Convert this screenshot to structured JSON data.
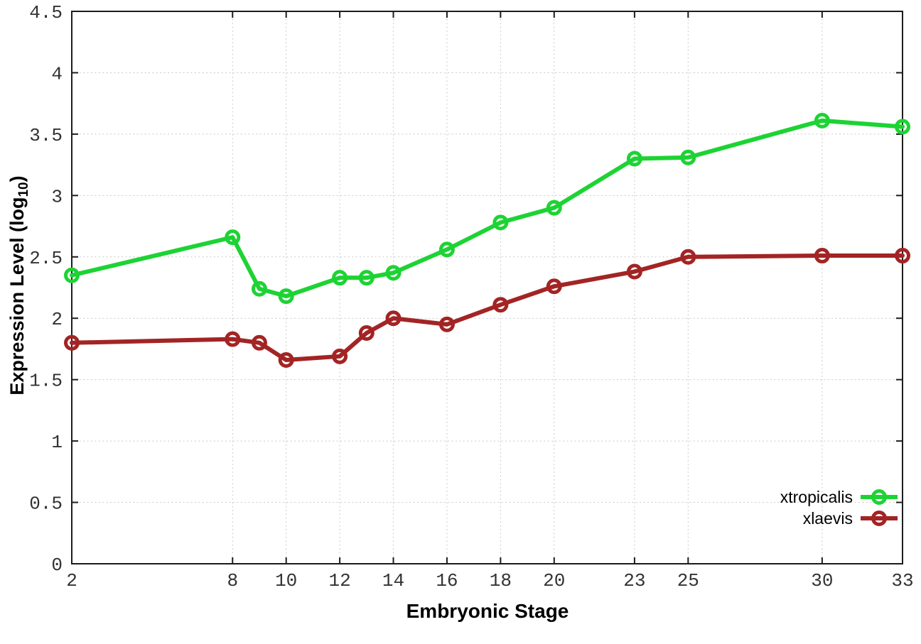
{
  "chart_data": {
    "type": "line",
    "x": [
      2,
      8,
      9,
      10,
      12,
      13,
      14,
      16,
      18,
      20,
      23,
      25,
      30,
      33
    ],
    "series": [
      {
        "name": "xtropicalis",
        "color": "#1dd334",
        "values": [
          2.35,
          2.66,
          2.24,
          2.18,
          2.33,
          2.33,
          2.37,
          2.56,
          2.78,
          2.9,
          3.3,
          3.31,
          3.61,
          3.56
        ]
      },
      {
        "name": "xlaevis",
        "color": "#a32424",
        "values": [
          1.8,
          1.83,
          1.8,
          1.66,
          1.69,
          1.88,
          2.0,
          1.95,
          2.11,
          2.26,
          2.38,
          2.5,
          2.51,
          2.51
        ]
      }
    ],
    "xlabel": "Embryonic Stage",
    "ylabel": "Expression Level (log10)",
    "ylabel_base": "Expression Level (log",
    "ylabel_sub": "10",
    "ylabel_close": ")",
    "xlim": [
      2,
      33
    ],
    "ylim": [
      0,
      4.5
    ],
    "x_ticks": [
      2,
      8,
      10,
      12,
      14,
      16,
      18,
      20,
      23,
      25,
      30,
      33
    ],
    "x_tick_labels": [
      "2",
      "8",
      "10",
      "12",
      "14",
      "16",
      "18",
      "20",
      "23",
      "25",
      "30",
      "33"
    ],
    "y_ticks": [
      0,
      0.5,
      1,
      1.5,
      2,
      2.5,
      3,
      3.5,
      4,
      4.5
    ],
    "y_tick_labels": [
      "0",
      "0.5",
      "1",
      "1.5",
      "2",
      "2.5",
      "3",
      "3.5",
      "4",
      "4.5"
    ],
    "grid": true,
    "legend_position": "bottom-right",
    "background_color": "#ffffff",
    "grid_color": "#c9c9c9",
    "axis_color": "#1c1c1c",
    "tick_label_color": "#333333"
  }
}
